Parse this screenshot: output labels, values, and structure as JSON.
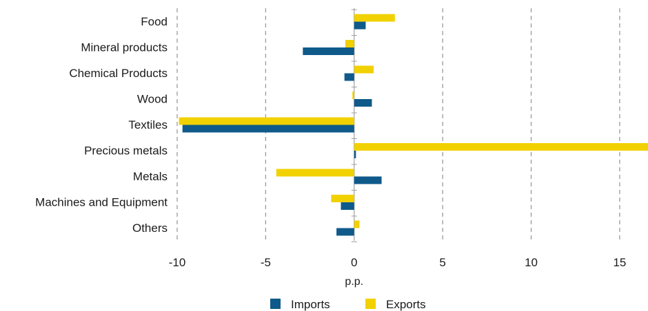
{
  "chart_data": {
    "type": "bar",
    "orientation": "horizontal",
    "categories": [
      "Food",
      "Mineral products",
      "Chemical Products",
      "Wood",
      "Textiles",
      "Precious metals",
      "Metals",
      "Machines and Equipment",
      "Others"
    ],
    "series": [
      {
        "name": "Exports",
        "color": "#f2d100",
        "values": [
          2.3,
          -0.5,
          1.1,
          -0.1,
          -9.9,
          16.6,
          -4.4,
          -1.3,
          0.3
        ]
      },
      {
        "name": "Imports",
        "color": "#0f5a8a",
        "values": [
          0.65,
          -2.9,
          -0.55,
          1.0,
          -9.7,
          0.1,
          1.55,
          -0.75,
          -1.0
        ]
      }
    ],
    "xlim": [
      -10,
      16.6
    ],
    "xticks": [
      "-10",
      "-5",
      "0",
      "5",
      "10",
      "15"
    ],
    "xtick_values": [
      -10,
      -5,
      0,
      5,
      10,
      15
    ],
    "xlabel": "p.p.",
    "grid": "vertical dashed",
    "legend": {
      "placement": "bottom-center",
      "items": [
        "Imports",
        "Exports"
      ]
    }
  }
}
